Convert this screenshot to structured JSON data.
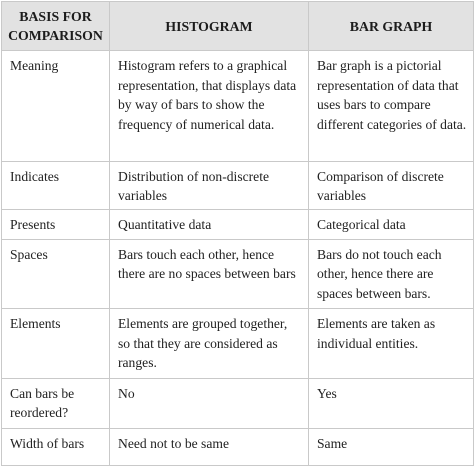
{
  "header": {
    "basis": "BASIS FOR COMPARISON",
    "histogram": "HISTOGRAM",
    "bar_graph": "BAR GRAPH"
  },
  "rows": [
    {
      "basis": "Meaning",
      "histogram": "Histogram refers to a graphical representation, that displays data by way of bars to show the frequency of numerical data.",
      "bar_graph": "Bar graph is a pictorial representation of data that uses bars to compare different categories of data."
    },
    {
      "basis": "Indicates",
      "histogram": "Distribution of non-discrete variables",
      "bar_graph": "Comparison of discrete variables"
    },
    {
      "basis": "Presents",
      "histogram": "Quantitative data",
      "bar_graph": "Categorical data"
    },
    {
      "basis": "Spaces",
      "histogram": "Bars touch each other, hence there are no spaces between bars",
      "bar_graph": "Bars do not touch each other, hence there are spaces between bars."
    },
    {
      "basis": "Elements",
      "histogram": "Elements are grouped together, so that they are considered as ranges.",
      "bar_graph": "Elements are taken as individual entities."
    },
    {
      "basis": "Can bars be reordered?",
      "histogram": "No",
      "bar_graph": "Yes"
    },
    {
      "basis": "Width of bars",
      "histogram": "Need not to be same",
      "bar_graph": "Same"
    }
  ]
}
